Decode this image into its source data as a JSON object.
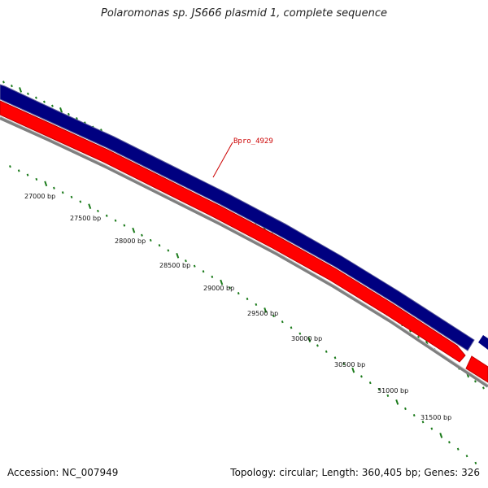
{
  "title": "Polaromonas sp. JS666 plasmid 1, complete sequence",
  "footer": {
    "accession": "Accession: NC_007949",
    "summary": "Topology: circular; Length: 360,405 bp; Genes: 326"
  },
  "gene_label": "Bpro_4929",
  "bp_labels": [
    "27000 bp",
    "27500 bp",
    "28000 bp",
    "28500 bp",
    "29000 bp",
    "29500 bp",
    "30000 bp",
    "30500 bp",
    "31000 bp",
    "31500 bp"
  ],
  "colors": {
    "forward_strand": "#000080",
    "reverse_strand": "#ff0000",
    "backbone": "#808080",
    "ticks": "#1a7a1a",
    "gene_label": "#cc0000"
  }
}
